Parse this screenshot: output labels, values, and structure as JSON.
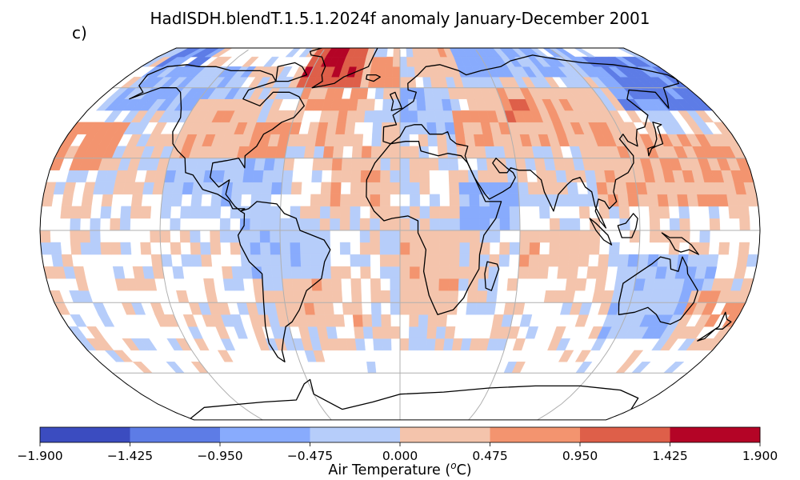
{
  "figure": {
    "title": "HadISDH.blendT.1.5.1.2024f anomaly January-December 2001",
    "panel_label": "c)"
  },
  "colorbar": {
    "label_main": "Air Temperature (",
    "label_sup": "o",
    "label_tail": "C)",
    "ticks": [
      "−1.900",
      "−1.425",
      "−0.950",
      "−0.475",
      "0.000",
      "0.475",
      "0.950",
      "1.425",
      "1.900"
    ],
    "colors": [
      "#3b4cc0",
      "#5d7ce6",
      "#88abfd",
      "#b6cdfa",
      "#f4c4ac",
      "#f3946f",
      "#de5f49",
      "#b40426"
    ]
  },
  "chart_data": {
    "type": "heatmap",
    "projection": "Robinson",
    "grid": true,
    "variable": "Air Temperature anomaly (oC)",
    "value_range": [
      -1.9,
      1.9
    ],
    "cell_size_deg": 5,
    "regions": [
      {
        "lon": [
          -65,
          -25
        ],
        "lat": [
          60,
          80
        ],
        "value": 1.2
      },
      {
        "lon": [
          -55,
          -40
        ],
        "lat": [
          70,
          78
        ],
        "value": 1.7
      },
      {
        "lon": [
          -20,
          0
        ],
        "lat": [
          60,
          75
        ],
        "value": 0.6
      },
      {
        "lon": [
          10,
          40
        ],
        "lat": [
          65,
          80
        ],
        "value": 0.3
      },
      {
        "lon": [
          40,
          75
        ],
        "lat": [
          65,
          80
        ],
        "value": -0.7
      },
      {
        "lon": [
          75,
          130
        ],
        "lat": [
          65,
          80
        ],
        "value": -0.5
      },
      {
        "lon": [
          130,
          180
        ],
        "lat": [
          50,
          75
        ],
        "value": -1.0
      },
      {
        "lon": [
          -170,
          -100
        ],
        "lat": [
          50,
          70
        ],
        "value": -0.5
      },
      {
        "lon": [
          -170,
          -140
        ],
        "lat": [
          70,
          80
        ],
        "value": -1.0
      },
      {
        "lon": [
          -180,
          -150
        ],
        "lat": [
          25,
          45
        ],
        "value": 0.7
      },
      {
        "lon": [
          -120,
          -80
        ],
        "lat": [
          30,
          55
        ],
        "value": 0.3
      },
      {
        "lon": [
          -80,
          -60
        ],
        "lat": [
          30,
          45
        ],
        "value": 0.6
      },
      {
        "lon": [
          -60,
          -20
        ],
        "lat": [
          35,
          60
        ],
        "value": 0.5
      },
      {
        "lon": [
          -40,
          -10
        ],
        "lat": [
          10,
          35
        ],
        "value": 0.4
      },
      {
        "lon": [
          0,
          30
        ],
        "lat": [
          40,
          60
        ],
        "value": -0.4
      },
      {
        "lon": [
          30,
          50
        ],
        "lat": [
          35,
          50
        ],
        "value": 0.6
      },
      {
        "lon": [
          50,
          120
        ],
        "lat": [
          35,
          60
        ],
        "value": 0.4
      },
      {
        "lon": [
          60,
          80
        ],
        "lat": [
          45,
          55
        ],
        "value": 0.9
      },
      {
        "lon": [
          100,
          180
        ],
        "lat": [
          10,
          40
        ],
        "value": 0.4
      },
      {
        "lon": [
          -120,
          -60
        ],
        "lat": [
          5,
          30
        ],
        "value": -0.3
      },
      {
        "lon": [
          -80,
          -40
        ],
        "lat": [
          -20,
          5
        ],
        "value": -0.3
      },
      {
        "lon": [
          -60,
          -20
        ],
        "lat": [
          -40,
          -20
        ],
        "value": 0.3
      },
      {
        "lon": [
          0,
          30
        ],
        "lat": [
          -35,
          0
        ],
        "value": 0.3
      },
      {
        "lon": [
          30,
          60
        ],
        "lat": [
          0,
          20
        ],
        "value": -0.6
      },
      {
        "lon": [
          60,
          100
        ],
        "lat": [
          -20,
          0
        ],
        "value": 0.3
      },
      {
        "lon": [
          110,
          160
        ],
        "lat": [
          -45,
          -10
        ],
        "value": -0.4
      },
      {
        "lon": [
          150,
          180
        ],
        "lat": [
          -45,
          -25
        ],
        "value": 0.4
      }
    ]
  }
}
